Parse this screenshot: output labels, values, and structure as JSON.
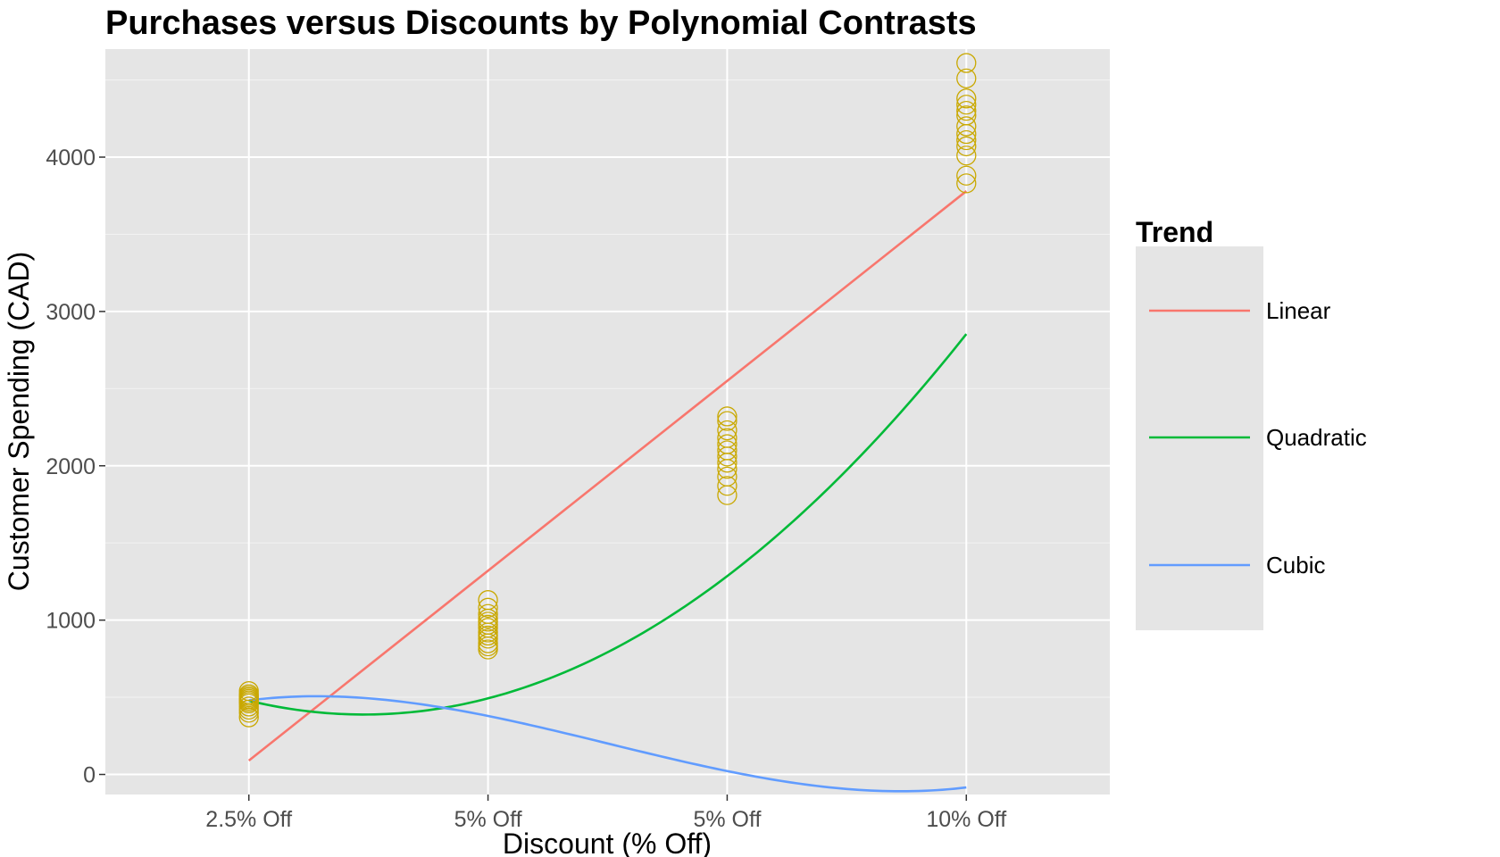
{
  "chart_data": {
    "type": "scatter",
    "title": "Purchases versus Discounts by Polynomial Contrasts",
    "xlabel": "Discount (% Off)",
    "ylabel": "Customer Spending (CAD)",
    "categories": [
      "2.5% Off",
      "5% Off",
      "5% Off",
      "10% Off"
    ],
    "ylim": [
      -130,
      4700
    ],
    "yticks": [
      0,
      1000,
      2000,
      3000,
      4000
    ],
    "grid": true,
    "legend_position": "right",
    "legend_title": "Trend",
    "point_color": "#C9A800",
    "points": [
      {
        "x": 1,
        "y": [
          370,
          400,
          420,
          440,
          460,
          470,
          480,
          490,
          500,
          510,
          520,
          540
        ]
      },
      {
        "x": 2,
        "y": [
          810,
          830,
          850,
          880,
          900,
          920,
          950,
          970,
          990,
          1010,
          1040,
          1080,
          1130
        ]
      },
      {
        "x": 3,
        "y": [
          1810,
          1870,
          1930,
          1980,
          2020,
          2060,
          2100,
          2140,
          2180,
          2230,
          2290,
          2320
        ]
      },
      {
        "x": 4,
        "y": [
          3830,
          3880,
          4010,
          4070,
          4110,
          4150,
          4200,
          4270,
          4300,
          4340,
          4380,
          4510,
          4610
        ]
      }
    ],
    "series": [
      {
        "name": "Linear",
        "color": "#F8766D",
        "x": [
          1,
          4
        ],
        "y": [
          90,
          3780
        ]
      },
      {
        "name": "Quadratic",
        "color": "#00BA38",
        "coef": [
          1240,
          -1150.5,
          388.5,
          0
        ]
      },
      {
        "name": "Cubic",
        "color": "#619CFF",
        "coef": [
          -182,
          1212.5,
          -635,
          84.5
        ]
      }
    ]
  }
}
